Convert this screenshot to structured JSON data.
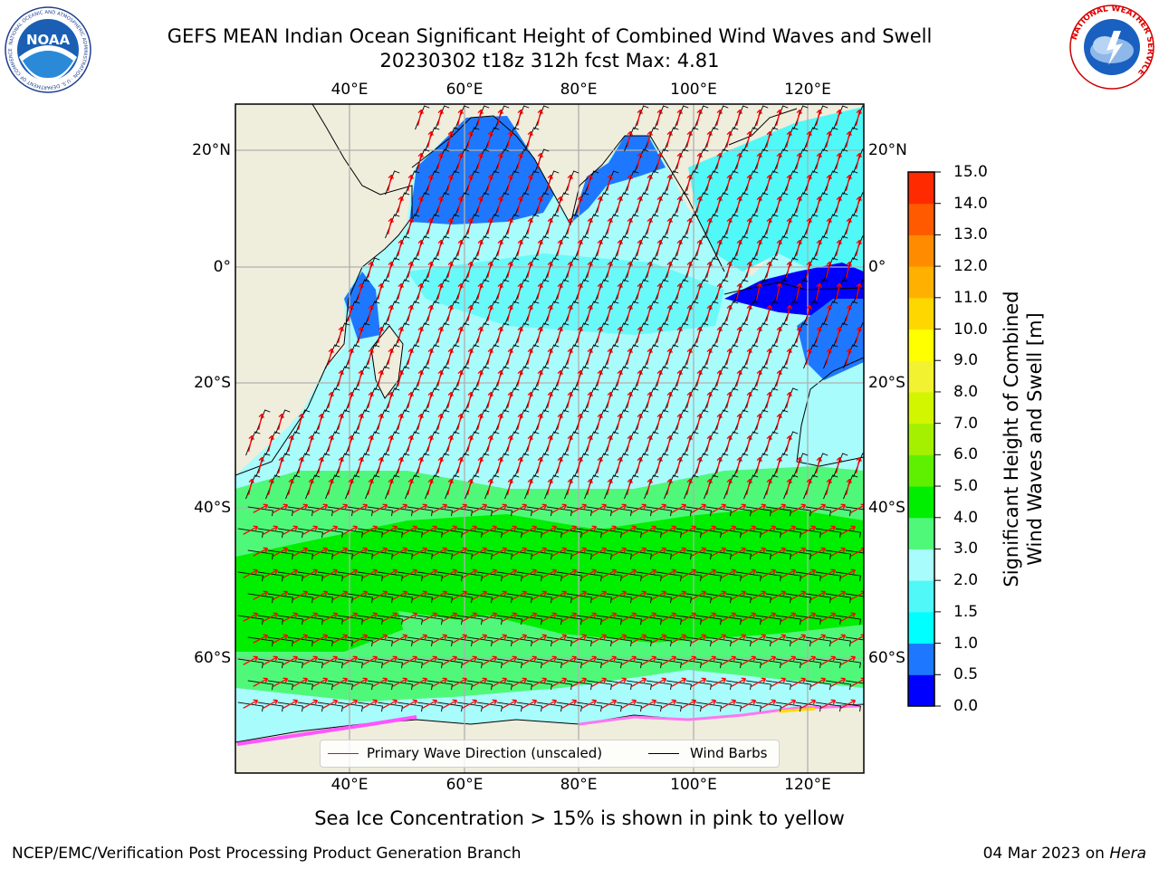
{
  "header": {
    "title_line1": "GEFS MEAN Indian Ocean Significant Height of Combined Wind Waves and Swell",
    "title_line2": "20230302 t18z 312h fcst   Max: 4.81"
  },
  "logos": {
    "left_text": "NOAA",
    "left_ring_text": "NATIONAL OCEANIC AND ATMOSPHERIC ADMINISTRATION · U.S. DEPARTMENT OF COMMERCE",
    "right_ring_text": "NATIONAL WEATHER SERVICE"
  },
  "map": {
    "lon_ticks": [
      "40°E",
      "60°E",
      "80°E",
      "100°E",
      "120°E"
    ],
    "lat_ticks_left": [
      "20°N",
      "0°",
      "20°S",
      "40°S",
      "60°S"
    ],
    "lat_ticks_right": [
      "20°N",
      "0°",
      "20°S",
      "40°S",
      "60°S"
    ],
    "extent": {
      "lon_min": 20,
      "lon_max": 130,
      "lat_min": -75,
      "lat_max": 26
    },
    "grid": true,
    "colors": {
      "land": "#efeddc",
      "ocean_low": "#a8fcfc",
      "wave_arrows": "#ff0000",
      "wind_barbs": "#000000",
      "grid": "#b0b0b0"
    }
  },
  "legend": {
    "items": [
      {
        "label": "Primary Wave Direction (unscaled)",
        "color": "#ff0000"
      },
      {
        "label": "Wind Barbs",
        "color": "#000000"
      }
    ]
  },
  "colorbar": {
    "label_line1": "Significant Height of Combined",
    "label_line2": "Wind Waves and Swell [m]",
    "tick_labels": [
      "0.0",
      "0.5",
      "1.0",
      "1.5",
      "2.0",
      "3.0",
      "4.0",
      "5.0",
      "6.0",
      "7.0",
      "8.0",
      "9.0",
      "10.0",
      "11.0",
      "12.0",
      "13.0",
      "14.0",
      "15.0"
    ],
    "colors": [
      "#0000ff",
      "#1e78ff",
      "#00ffff",
      "#50f8f8",
      "#a8fcfc",
      "#50f87a",
      "#00ee00",
      "#5ef000",
      "#a4f000",
      "#d2f500",
      "#f2f230",
      "#ffff00",
      "#ffd700",
      "#ffb000",
      "#ff8c00",
      "#ff5a00",
      "#ff2a00",
      "#ff0000"
    ]
  },
  "notes": {
    "ice": "Sea Ice Concentration > 15% is shown in pink to yellow",
    "footer_left": "NCEP/EMC/Verification Post Processing Product Generation Branch",
    "footer_right_date": "04 Mar 2023 on",
    "footer_right_host": "Hera"
  }
}
